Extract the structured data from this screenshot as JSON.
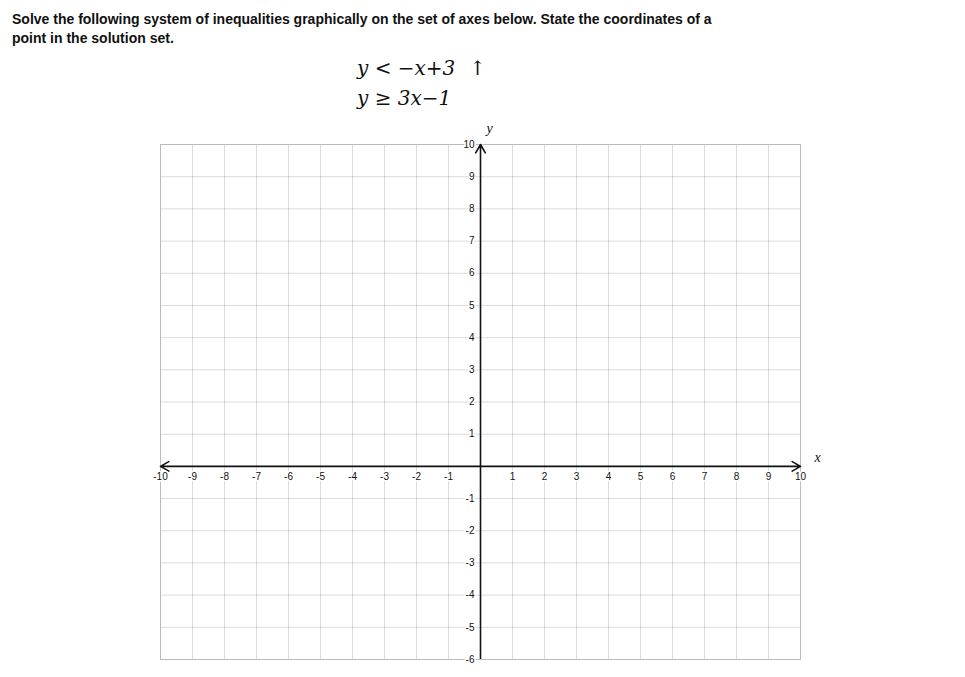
{
  "chart_data": {
    "type": "coordinate_plane",
    "title": "Solve the following system of inequalities graphically on the set of axes below. State the coordinates of a\npoint in the solution set.",
    "annotations": [
      [
        "y < −x+3",
        "↑"
      ],
      [
        "y ≥ 3x−1"
      ]
    ],
    "xlabel": "x",
    "ylabel": "y",
    "xlim": [
      -10,
      10
    ],
    "xticks": [
      -10,
      -9,
      -8,
      -7,
      -6,
      -5,
      -4,
      -3,
      -2,
      -1,
      1,
      2,
      3,
      4,
      5,
      6,
      7,
      8,
      9,
      10
    ],
    "ylim": [
      -6,
      10
    ],
    "yticks": [
      -6,
      -5,
      -4,
      -3,
      -2,
      -1,
      1,
      2,
      3,
      4,
      5,
      6,
      7,
      8,
      9,
      10
    ],
    "grid": true
  }
}
